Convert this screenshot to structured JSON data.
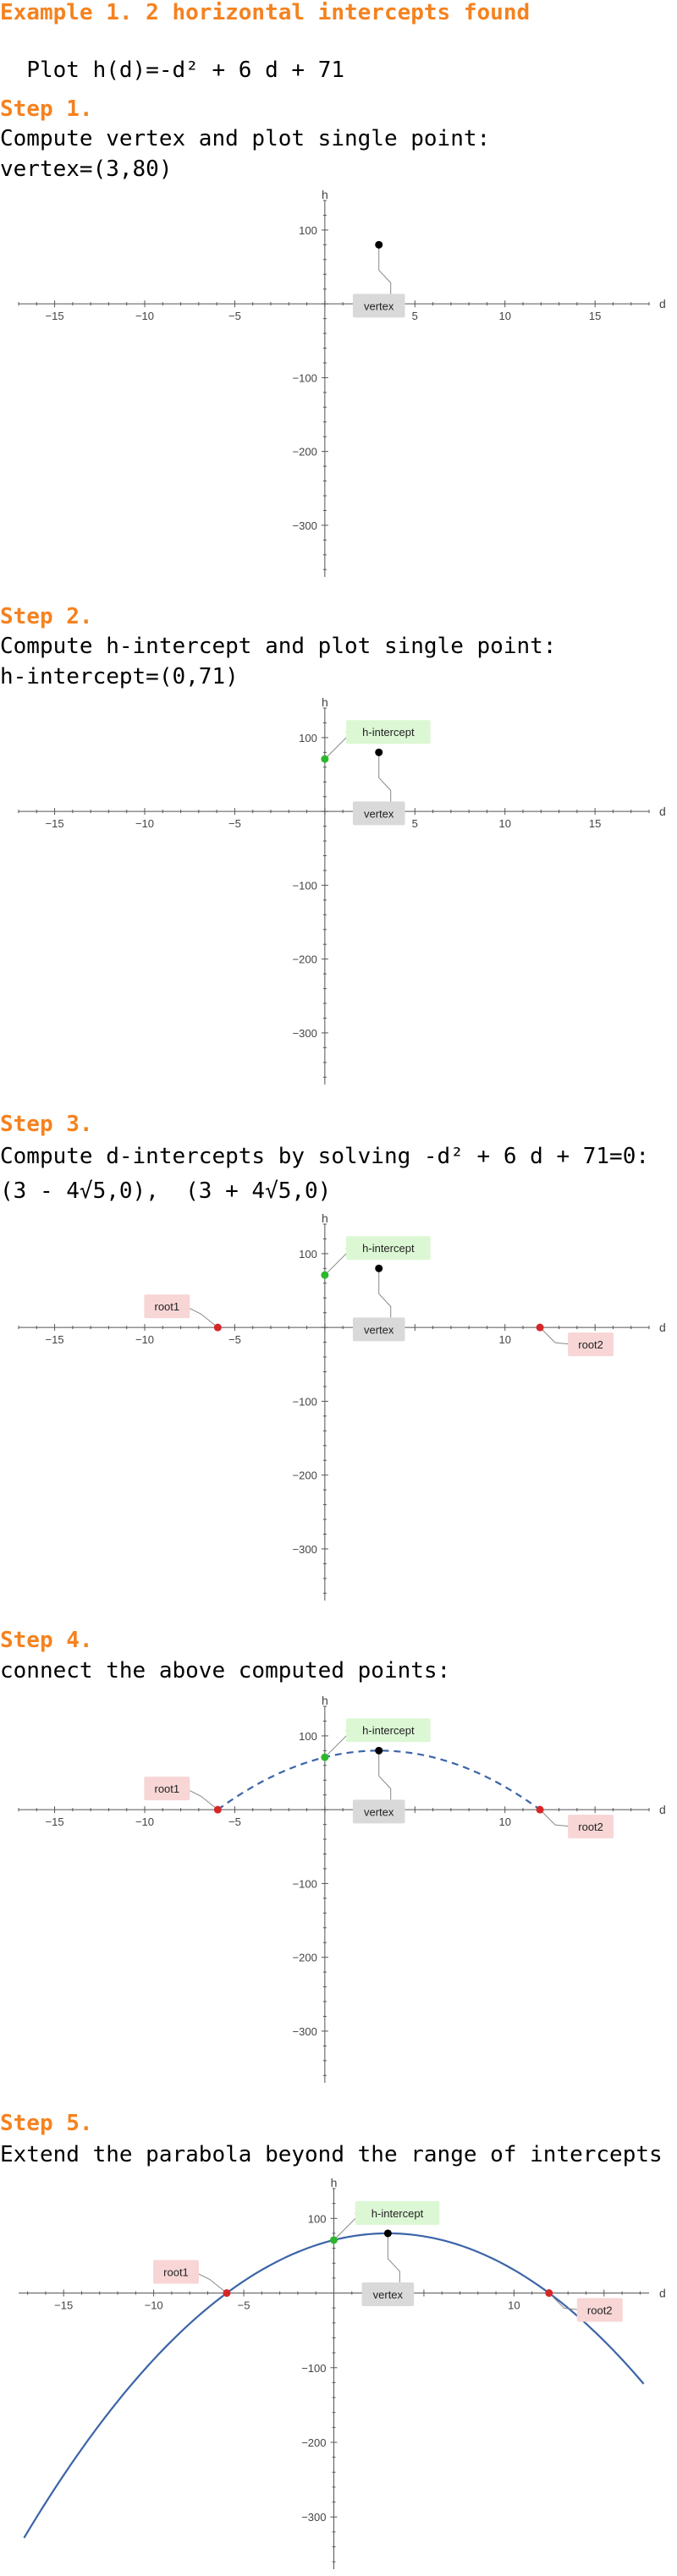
{
  "page_title": "Example 1. 2 horizontal intercepts found",
  "intro_prefix": "Plot ",
  "intro_formula": "h(d)=-d² + 6 d + 71",
  "steps": [
    {
      "label": "Step 1.",
      "text": "Compute vertex and plot single point:",
      "result": "vertex=(3,80)"
    },
    {
      "label": "Step 2.",
      "text": "Compute h-intercept and plot single point:",
      "result": "h-intercept=(0,71)"
    },
    {
      "label": "Step 3.",
      "text": "Compute d-intercepts by solving -d² + 6 d + 71=0:",
      "result": "(3 - 4√5,0),  (3 + 4√5,0)"
    },
    {
      "label": "Step 4.",
      "text": "connect the above computed points:"
    },
    {
      "label": "Step 5.",
      "text": "Extend the parabola beyond the range of intercepts"
    }
  ],
  "colors": {
    "orange": "#f5821f",
    "vertex": "#000000",
    "h_intercept": "#2db72d",
    "root": "#d62728",
    "curve": "#3c64a8",
    "vertex_label_bg": "#d9d9d9",
    "h_label_bg": "#dcf7d4",
    "root_label_bg": "#f8d6d6"
  },
  "chart_data": [
    {
      "type": "scatter",
      "step": 1,
      "xlabel": "d",
      "ylabel": "h",
      "xlim": [
        -17,
        18
      ],
      "ylim": [
        -370,
        140
      ],
      "xticks": [
        -15,
        -10,
        -5,
        5,
        10,
        15
      ],
      "yticks": [
        100,
        -100,
        -200,
        -300
      ],
      "points": [
        {
          "name": "vertex",
          "x": 3,
          "y": 80
        }
      ],
      "curve": "none"
    },
    {
      "type": "scatter",
      "step": 2,
      "xlabel": "d",
      "ylabel": "h",
      "xlim": [
        -17,
        18
      ],
      "ylim": [
        -370,
        140
      ],
      "xticks": [
        -15,
        -10,
        -5,
        5,
        10,
        15
      ],
      "yticks": [
        100,
        -100,
        -200,
        -300
      ],
      "points": [
        {
          "name": "h-intercept",
          "x": 0,
          "y": 71
        },
        {
          "name": "vertex",
          "x": 3,
          "y": 80
        }
      ],
      "curve": "none"
    },
    {
      "type": "scatter",
      "step": 3,
      "xlabel": "d",
      "ylabel": "h",
      "xlim": [
        -17,
        18
      ],
      "ylim": [
        -370,
        140
      ],
      "xticks": [
        -15,
        -10,
        -5,
        10,
        15
      ],
      "yticks": [
        100,
        -100,
        -200,
        -300
      ],
      "points": [
        {
          "name": "h-intercept",
          "x": 0,
          "y": 71
        },
        {
          "name": "vertex",
          "x": 3,
          "y": 80
        },
        {
          "name": "root1",
          "x": -5.944,
          "y": 0
        },
        {
          "name": "root2",
          "x": 11.944,
          "y": 0
        }
      ],
      "curve": "none"
    },
    {
      "type": "line",
      "step": 4,
      "xlabel": "d",
      "ylabel": "h",
      "xlim": [
        -17,
        18
      ],
      "ylim": [
        -370,
        140
      ],
      "xticks": [
        -15,
        -10,
        -5,
        10
      ],
      "yticks": [
        100,
        -100,
        -200,
        -300
      ],
      "points": [
        {
          "name": "h-intercept",
          "x": 0,
          "y": 71
        },
        {
          "name": "vertex",
          "x": 3,
          "y": 80
        },
        {
          "name": "root1",
          "x": -5.944,
          "y": 0
        },
        {
          "name": "root2",
          "x": 11.944,
          "y": 0
        }
      ],
      "curve": "dashed",
      "curve_range": [
        -5.944,
        11.944
      ],
      "coefficients": {
        "a": -1,
        "b": 6,
        "c": 71
      }
    },
    {
      "type": "line",
      "step": 5,
      "xlabel": "d",
      "ylabel": "h",
      "xlim": [
        -17.5,
        17.5
      ],
      "ylim": [
        -370,
        140
      ],
      "xticks": [
        -15,
        -10,
        -5,
        10
      ],
      "yticks": [
        100,
        -100,
        -200,
        -300
      ],
      "points": [
        {
          "name": "h-intercept",
          "x": 0,
          "y": 71
        },
        {
          "name": "vertex",
          "x": 3,
          "y": 80
        },
        {
          "name": "root1",
          "x": -5.944,
          "y": 0
        },
        {
          "name": "root2",
          "x": 11.944,
          "y": 0
        }
      ],
      "curve": "solid",
      "curve_range": [
        -17.2,
        17.2
      ],
      "coefficients": {
        "a": -1,
        "b": 6,
        "c": 71
      }
    }
  ]
}
